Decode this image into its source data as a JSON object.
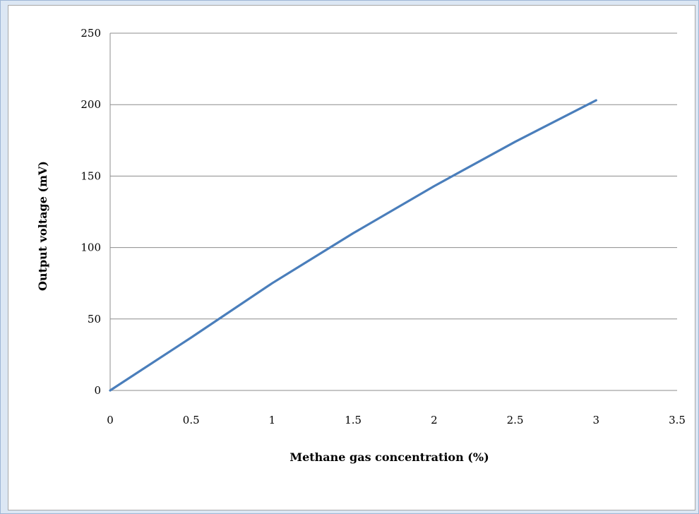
{
  "chart_data": {
    "type": "line",
    "title": "",
    "xlabel": "Methane gas concentration (%)",
    "ylabel": "Output voltage (mV)",
    "xlim": [
      0,
      3.5
    ],
    "ylim": [
      0,
      250
    ],
    "x_ticks": [
      "0",
      "0.5",
      "1",
      "1.5",
      "2",
      "2.5",
      "3",
      "3.5"
    ],
    "y_ticks": [
      "0",
      "50",
      "100",
      "150",
      "200",
      "250"
    ],
    "grid": "horizontal",
    "legend": "none",
    "series": [
      {
        "color": "#4a7ebb",
        "x": [
          0,
          0.5,
          1,
          1.5,
          2,
          2.5,
          3
        ],
        "y": [
          0,
          37,
          75,
          110,
          143,
          174,
          203
        ]
      }
    ]
  }
}
